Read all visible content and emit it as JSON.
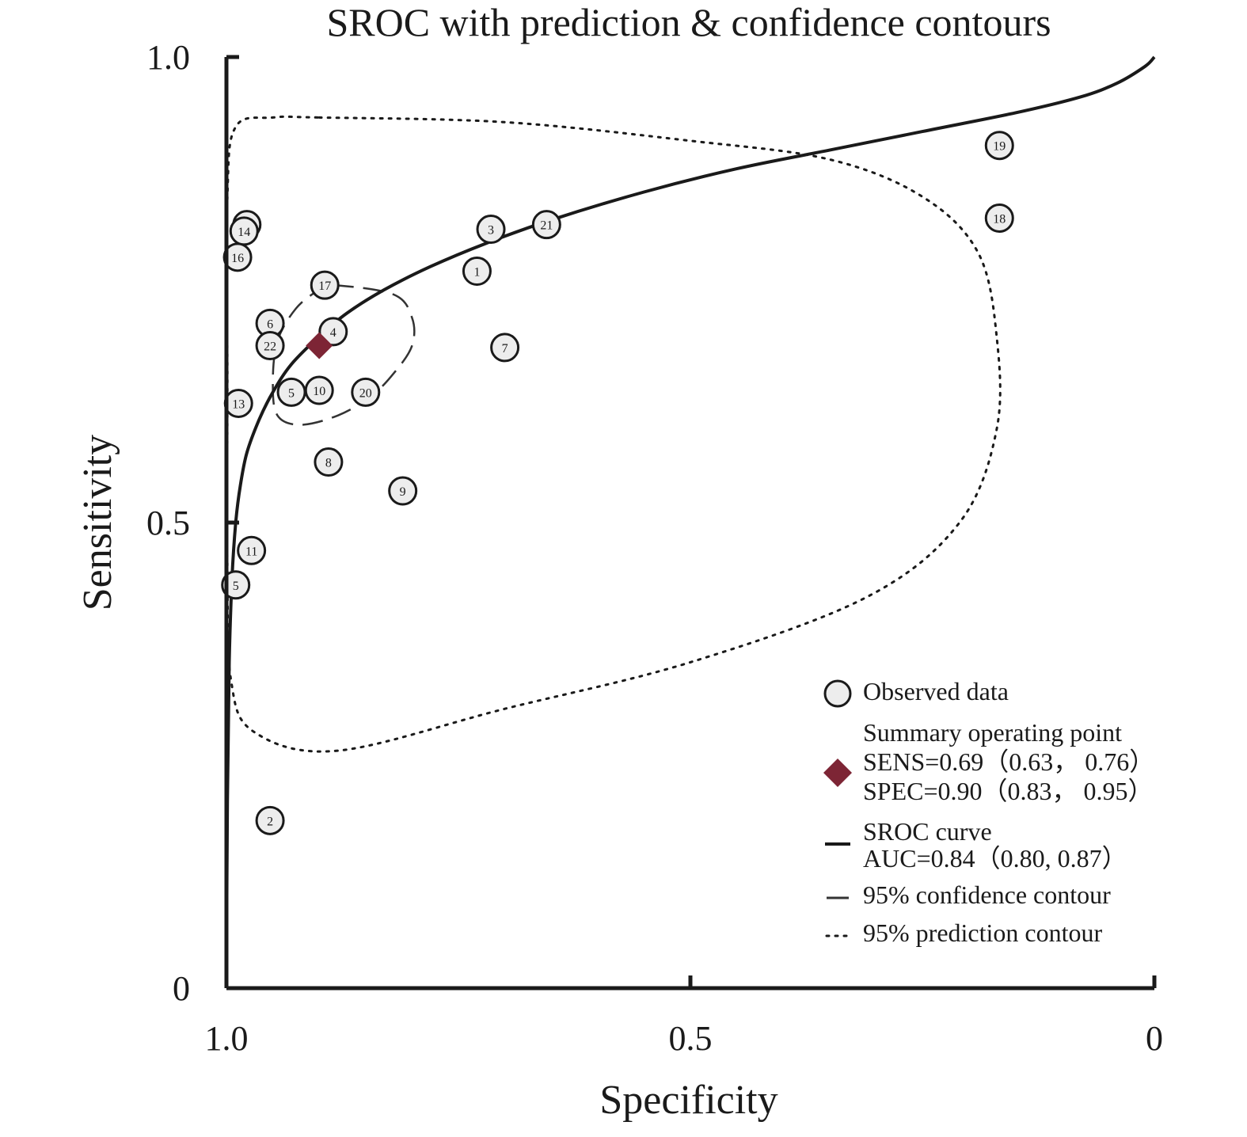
{
  "chart_data": {
    "type": "scatter",
    "title": "SROC with prediction & confidence contours",
    "xlabel": "Specificity",
    "ylabel": "Sensitivity",
    "x_reversed": true,
    "xlim": [
      1.0,
      0
    ],
    "ylim": [
      0,
      1.0
    ],
    "x_ticks": [
      {
        "value": 1.0,
        "label": "1.0"
      },
      {
        "value": 0.5,
        "label": "0.5"
      },
      {
        "value": 0,
        "label": "0"
      }
    ],
    "y_ticks": [
      {
        "value": 0,
        "label": "0"
      },
      {
        "value": 0.5,
        "label": "0.5"
      },
      {
        "value": 1.0,
        "label": "1.0"
      }
    ],
    "grid": false,
    "legend_position": "bottom-right",
    "colors": {
      "axis": "#1a1a1a",
      "point_fill": "#ededed",
      "summary": "#7d2535"
    },
    "observed_data": {
      "legend": "Observed data",
      "points": [
        {
          "label": "1",
          "spec": 0.73,
          "sens": 0.77
        },
        {
          "label": "2",
          "spec": 0.953,
          "sens": 0.18
        },
        {
          "label": "3",
          "spec": 0.715,
          "sens": 0.815
        },
        {
          "label": "4",
          "spec": 0.885,
          "sens": 0.705
        },
        {
          "label": "5",
          "spec": 0.93,
          "sens": 0.64
        },
        {
          "label": "5",
          "spec": 0.99,
          "sens": 0.433
        },
        {
          "label": "6",
          "spec": 0.953,
          "sens": 0.714
        },
        {
          "label": "7",
          "spec": 0.7,
          "sens": 0.688
        },
        {
          "label": "8",
          "spec": 0.89,
          "sens": 0.565
        },
        {
          "label": "9",
          "spec": 0.81,
          "sens": 0.534
        },
        {
          "label": "10",
          "spec": 0.9,
          "sens": 0.642
        },
        {
          "label": "11",
          "spec": 0.973,
          "sens": 0.47
        },
        {
          "label": "12",
          "spec": 0.978,
          "sens": 0.82
        },
        {
          "label": "13",
          "spec": 0.987,
          "sens": 0.628
        },
        {
          "label": "14",
          "spec": 0.981,
          "sens": 0.813
        },
        {
          "label": "16",
          "spec": 0.988,
          "sens": 0.785
        },
        {
          "label": "17",
          "spec": 0.894,
          "sens": 0.755
        },
        {
          "label": "18",
          "spec": 0.167,
          "sens": 0.827
        },
        {
          "label": "19",
          "spec": 0.167,
          "sens": 0.905
        },
        {
          "label": "20",
          "spec": 0.85,
          "sens": 0.64
        },
        {
          "label": "21",
          "spec": 0.655,
          "sens": 0.82
        },
        {
          "label": "22",
          "spec": 0.953,
          "sens": 0.69
        }
      ]
    },
    "summary_point": {
      "legend_lines": [
        "Summary operating point",
        "SENS=0.69（0.63， 0.76）",
        "SPEC=0.90（0.83， 0.95）"
      ],
      "sens": 0.69,
      "spec": 0.9
    },
    "sroc_curve": {
      "legend_lines": [
        "SROC curve",
        "AUC=0.84（0.80, 0.87）"
      ],
      "points": [
        [
          1.0,
          0.0
        ],
        [
          0.999,
          0.2
        ],
        [
          0.997,
          0.35
        ],
        [
          0.994,
          0.44
        ],
        [
          0.99,
          0.5
        ],
        [
          0.985,
          0.54
        ],
        [
          0.978,
          0.575
        ],
        [
          0.965,
          0.61
        ],
        [
          0.95,
          0.64
        ],
        [
          0.93,
          0.67
        ],
        [
          0.9,
          0.7
        ],
        [
          0.87,
          0.725
        ],
        [
          0.83,
          0.75
        ],
        [
          0.78,
          0.775
        ],
        [
          0.72,
          0.8
        ],
        [
          0.65,
          0.825
        ],
        [
          0.55,
          0.855
        ],
        [
          0.45,
          0.88
        ],
        [
          0.35,
          0.9
        ],
        [
          0.25,
          0.92
        ],
        [
          0.15,
          0.94
        ],
        [
          0.08,
          0.957
        ],
        [
          0.04,
          0.972
        ],
        [
          0.01,
          0.99
        ],
        [
          0.0,
          1.0
        ]
      ]
    },
    "confidence_contour": {
      "legend": "95% confidence contour",
      "points": [
        [
          0.885,
          0.755
        ],
        [
          0.82,
          0.745
        ],
        [
          0.8,
          0.72
        ],
        [
          0.8,
          0.69
        ],
        [
          0.82,
          0.66
        ],
        [
          0.845,
          0.635
        ],
        [
          0.88,
          0.615
        ],
        [
          0.92,
          0.605
        ],
        [
          0.945,
          0.615
        ],
        [
          0.95,
          0.65
        ],
        [
          0.945,
          0.695
        ],
        [
          0.925,
          0.73
        ],
        [
          0.9,
          0.75
        ],
        [
          0.885,
          0.755
        ]
      ]
    },
    "prediction_contour": {
      "legend": "95% prediction contour",
      "points": [
        [
          0.9,
          0.935
        ],
        [
          0.7,
          0.93
        ],
        [
          0.5,
          0.91
        ],
        [
          0.35,
          0.89
        ],
        [
          0.25,
          0.85
        ],
        [
          0.19,
          0.79
        ],
        [
          0.17,
          0.7
        ],
        [
          0.17,
          0.6
        ],
        [
          0.21,
          0.5
        ],
        [
          0.31,
          0.42
        ],
        [
          0.5,
          0.35
        ],
        [
          0.7,
          0.3
        ],
        [
          0.88,
          0.255
        ],
        [
          0.97,
          0.275
        ],
        [
          0.995,
          0.33
        ],
        [
          0.999,
          0.45
        ],
        [
          0.999,
          0.65
        ],
        [
          0.999,
          0.85
        ],
        [
          0.99,
          0.925
        ],
        [
          0.95,
          0.935
        ],
        [
          0.9,
          0.935
        ]
      ]
    }
  }
}
